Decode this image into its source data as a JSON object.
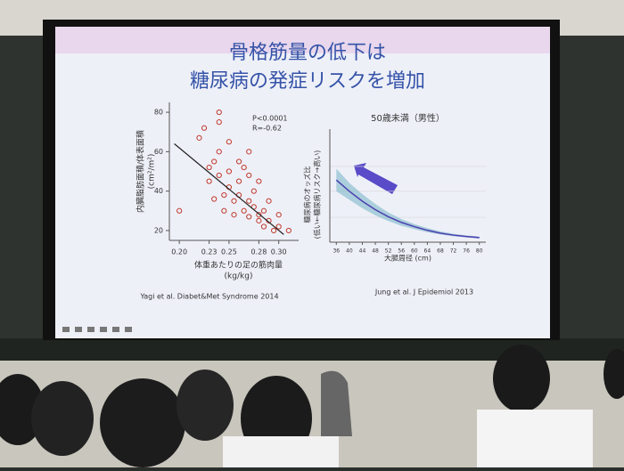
{
  "slide": {
    "title_lines": [
      "骨格筋量の低下は",
      "糖尿病の発症リスクを増加"
    ]
  },
  "chart_data": [
    {
      "type": "scatter",
      "ylabel": [
        "内臓脂肪面積/体表面積",
        "(cm²/m²)"
      ],
      "xlabel": [
        "体重あたりの足の筋肉量",
        "(kg/kg)"
      ],
      "annotations": [
        "P<0.0001",
        "R=-0.62"
      ],
      "source": "Yagi et al. Diabet&Met Syndrome 2014",
      "color": "#c0392b",
      "x": [
        0.2,
        0.22,
        0.225,
        0.23,
        0.23,
        0.235,
        0.24,
        0.24,
        0.24,
        0.24,
        0.245,
        0.245,
        0.25,
        0.25,
        0.25,
        0.255,
        0.255,
        0.26,
        0.26,
        0.26,
        0.265,
        0.265,
        0.27,
        0.27,
        0.27,
        0.275,
        0.275,
        0.28,
        0.28,
        0.28,
        0.285,
        0.285,
        0.29,
        0.29,
        0.295,
        0.3,
        0.3,
        0.31,
        0.235,
        0.27
      ],
      "y": [
        30,
        67,
        72,
        52,
        45,
        55,
        80,
        75,
        60,
        48,
        38,
        30,
        65,
        50,
        42,
        35,
        28,
        55,
        45,
        38,
        52,
        30,
        60,
        48,
        35,
        40,
        32,
        45,
        28,
        25,
        30,
        22,
        35,
        25,
        20,
        28,
        22,
        20,
        36,
        27
      ],
      "fit_line": {
        "x": [
          0.195,
          0.305
        ],
        "y": [
          64,
          18
        ]
      },
      "xlim": [
        0.19,
        0.32
      ],
      "ylim": [
        15,
        85
      ],
      "xticks": [
        {
          "value": 0.2,
          "label": "0.20"
        },
        {
          "value": 0.23,
          "label": "0.23"
        },
        {
          "value": 0.25,
          "label": "0.25"
        },
        {
          "value": 0.28,
          "label": "0.28"
        },
        {
          "value": 0.3,
          "label": "0.30"
        }
      ],
      "yticks": [
        20,
        40,
        60,
        80
      ]
    },
    {
      "type": "line",
      "title": "50歳未満（男性）",
      "ylabel": [
        "糖尿病のオッズ比",
        "(低い←糖尿病リスク→高い)"
      ],
      "xlabel": "大腿周径 (cm)",
      "source": "Jung et al. J Epidemiol 2013",
      "color": "#4b3fb0",
      "band_color": "#7fb8c9",
      "x": [
        36,
        40,
        44,
        48,
        52,
        56,
        60,
        64,
        68,
        72,
        76,
        80
      ],
      "values": [
        2.2,
        1.8,
        1.45,
        1.15,
        0.9,
        0.7,
        0.55,
        0.42,
        0.32,
        0.25,
        0.2,
        0.16
      ],
      "upper": [
        2.6,
        2.1,
        1.7,
        1.35,
        1.05,
        0.82,
        0.64,
        0.5,
        0.38,
        0.3,
        0.24,
        0.2
      ],
      "lower": [
        1.8,
        1.5,
        1.2,
        0.95,
        0.75,
        0.58,
        0.46,
        0.35,
        0.27,
        0.21,
        0.17,
        0.13
      ],
      "xlim": [
        34,
        82
      ],
      "ylim": [
        0,
        4
      ],
      "xticks": [
        36,
        40,
        44,
        48,
        52,
        56,
        60,
        64,
        68,
        72,
        76,
        80
      ]
    }
  ]
}
